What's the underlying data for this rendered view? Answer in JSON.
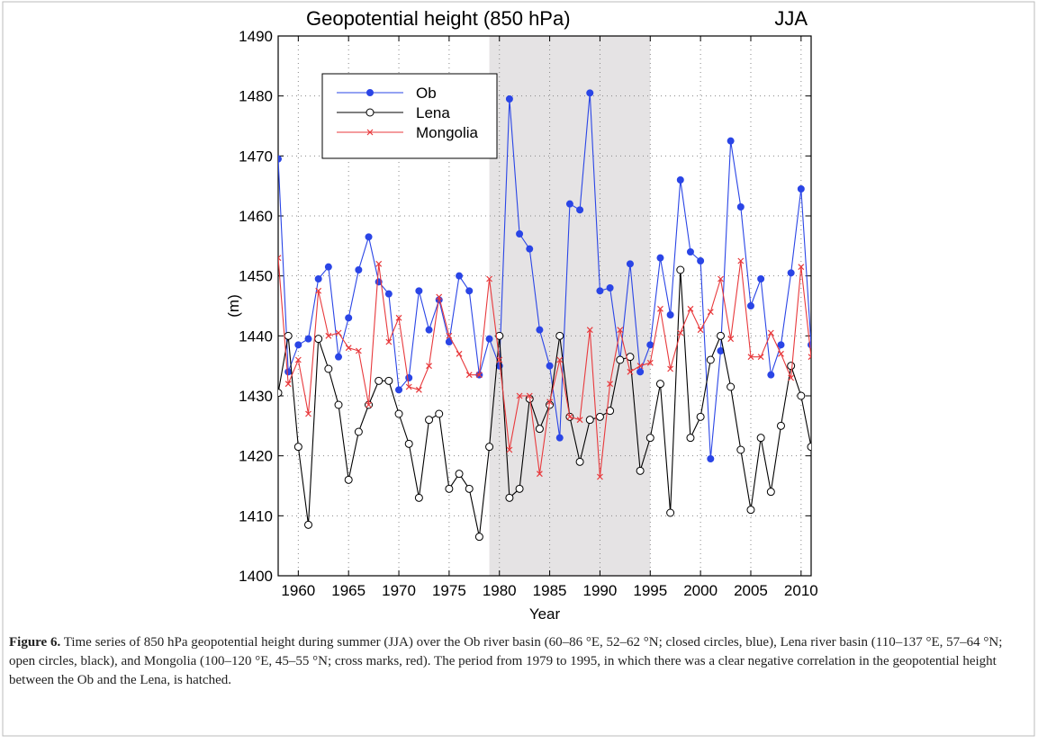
{
  "chart_data": {
    "type": "line",
    "title": "Geopotential height (850 hPa)",
    "subtitle": "JJA",
    "x_label": "Year",
    "y_label": "(m)",
    "x": [
      1958,
      1959,
      1960,
      1961,
      1962,
      1963,
      1964,
      1965,
      1966,
      1967,
      1968,
      1969,
      1970,
      1971,
      1972,
      1973,
      1974,
      1975,
      1976,
      1977,
      1978,
      1979,
      1980,
      1981,
      1982,
      1983,
      1984,
      1985,
      1986,
      1987,
      1988,
      1989,
      1990,
      1991,
      1992,
      1993,
      1994,
      1995,
      1996,
      1997,
      1998,
      1999,
      2000,
      2001,
      2002,
      2003,
      2004,
      2005,
      2006,
      2007,
      2008,
      2009,
      2010,
      2011
    ],
    "series": [
      {
        "name": "Ob",
        "color": "#2a45e6",
        "marker": "filled-circle",
        "values": [
          1469.5,
          1434,
          1438.5,
          1439.5,
          1449.5,
          1451.5,
          1436.5,
          1443,
          1451,
          1456.5,
          1449,
          1447,
          1431,
          1433,
          1447.5,
          1441,
          1446,
          1439,
          1450,
          1447.5,
          1433.5,
          1439.5,
          1435,
          1479.5,
          1457,
          1454.5,
          1441,
          1435,
          1423,
          1462,
          1461,
          1480.5,
          1447.5,
          1448,
          1436,
          1452,
          1434,
          1438.5,
          1453,
          1443.5,
          1466,
          1454,
          1452.5,
          1419.5,
          1437.5,
          1472.5,
          1461.5,
          1445,
          1449.5,
          1433.5,
          1438.5,
          1450.5,
          1464.5,
          1438.5
        ]
      },
      {
        "name": "Lena",
        "color": "#000000",
        "marker": "open-circle",
        "values": [
          1430.5,
          1440,
          1421.5,
          1408.5,
          1439.5,
          1434.5,
          1428.5,
          1416,
          1424,
          1428.5,
          1432.5,
          1432.5,
          1427,
          1422,
          1413,
          1426,
          1427,
          1414.5,
          1417,
          1414.5,
          1406.5,
          1421.5,
          1440,
          1413,
          1414.5,
          1429.5,
          1424.5,
          1428.5,
          1440,
          1426.5,
          1419,
          1426,
          1426.5,
          1427.5,
          1436,
          1436.5,
          1417.5,
          1423,
          1432,
          1410.5,
          1451,
          1423,
          1426.5,
          1436,
          1440,
          1431.5,
          1421,
          1411,
          1423,
          1414,
          1425,
          1435,
          1430,
          1421.5
        ]
      },
      {
        "name": "Mongolia",
        "color": "#e8393c",
        "marker": "cross",
        "values": [
          1453,
          1432,
          1436,
          1427,
          1447.5,
          1440,
          1440.5,
          1438,
          1437.5,
          1428.5,
          1452,
          1439,
          1443,
          1431.5,
          1431,
          1435,
          1446.5,
          1440,
          1437,
          1433.5,
          1433.5,
          1449.5,
          1436,
          1421,
          1430,
          1430,
          1417,
          1429,
          1436,
          1426.5,
          1426,
          1441,
          1416.5,
          1432,
          1441,
          1434,
          1435,
          1435.5,
          1444.5,
          1434.5,
          1440.5,
          1444.5,
          1441,
          1444,
          1449.5,
          1439.5,
          1452.5,
          1436.5,
          1436.5,
          1440.5,
          1437,
          1433,
          1451.5,
          1436.5
        ]
      }
    ],
    "shaded_span": [
      1979,
      1995
    ],
    "shade_color": "#e5e3e4",
    "xlim": [
      1958,
      2011
    ],
    "ylim": [
      1400,
      1490
    ],
    "xticks": [
      1960,
      1965,
      1970,
      1975,
      1980,
      1985,
      1990,
      1995,
      2000,
      2005,
      2010
    ],
    "yticks": [
      1400,
      1410,
      1420,
      1430,
      1440,
      1450,
      1460,
      1470,
      1480,
      1490
    ],
    "grid": true,
    "legend": "upper-left",
    "caption_label": "Figure 6.",
    "caption": "Time series of 850 hPa geopotential height during summer (JJA) over the Ob river basin (60–86 °E, 52–62 °N; closed circles, blue), Lena river basin (110–137 °E, 57–64 °N; open circles, black), and Mongolia (100–120 °E, 45–55 °N; cross marks, red). The period from 1979 to 1995, in which there was a clear negative correlation in the geopotential height between the Ob and the Lena, is hatched."
  }
}
